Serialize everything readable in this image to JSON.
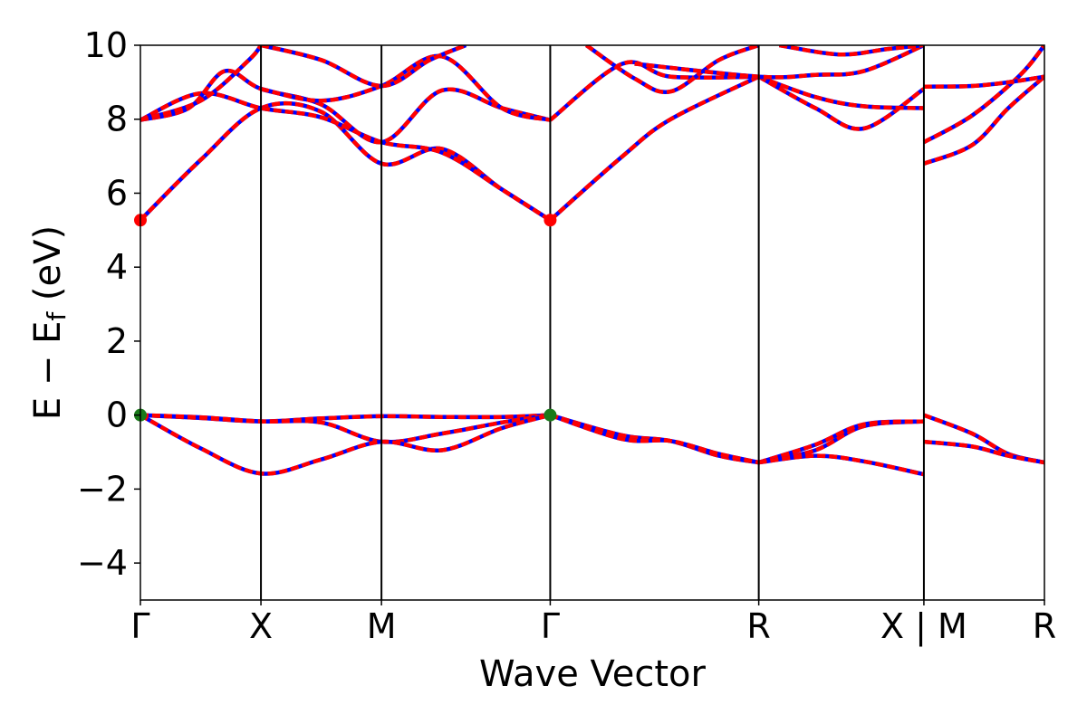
{
  "chart_data": {
    "type": "line",
    "title": "",
    "xlabel": "Wave Vector",
    "ylabel": "E − E",
    "ylabel_sub": "f",
    "ylabel_unit": " (eV)",
    "xlim": [
      0,
      7.5
    ],
    "ylim": [
      -5,
      10
    ],
    "yticks": [
      -4,
      -2,
      0,
      2,
      4,
      6,
      8,
      10
    ],
    "ytick_labels": [
      "−4",
      "−2",
      "0",
      "2",
      "4",
      "6",
      "8",
      "10"
    ],
    "grid": false,
    "legend": "none",
    "kpoints": [
      {
        "label": "Γ",
        "x": 0
      },
      {
        "label": "X",
        "x": 1
      },
      {
        "label": "M",
        "x": 2
      },
      {
        "label": "Γ",
        "x": 3.4
      },
      {
        "label": "R",
        "x": 5.13
      },
      {
        "label": "X | M",
        "x": 6.5
      },
      {
        "label": "R",
        "x": 7.5
      }
    ],
    "colors": {
      "band_primary": "#0000ff",
      "band_overlay": "#ff0000",
      "vbm_marker": "#1a7a1a",
      "cbm_marker": "#ff0000",
      "frame": "#000000"
    },
    "markers": [
      {
        "name": "VBM",
        "x": 0,
        "y": 0,
        "color": "#1a7a1a"
      },
      {
        "name": "VBM",
        "x": 3.4,
        "y": 0,
        "color": "#1a7a1a"
      },
      {
        "name": "CBM",
        "x": 0,
        "y": 5.27,
        "color": "#ff0000"
      },
      {
        "name": "CBM",
        "x": 3.4,
        "y": 5.27,
        "color": "#ff0000"
      }
    ],
    "series": [
      {
        "points": [
          [
            0,
            0
          ],
          [
            0.5,
            -0.08
          ],
          [
            1,
            -0.17
          ],
          [
            1.5,
            -0.09
          ],
          [
            2,
            -0.03
          ],
          [
            2.5,
            -0.05
          ],
          [
            3,
            -0.05
          ],
          [
            3.4,
            0
          ]
        ]
      },
      {
        "points": [
          [
            0,
            0
          ],
          [
            0.5,
            -0.06
          ],
          [
            1,
            -0.17
          ],
          [
            1.5,
            -0.2
          ],
          [
            2,
            -0.72
          ],
          [
            2.5,
            -0.5
          ],
          [
            3,
            -0.2
          ],
          [
            3.4,
            0
          ]
        ]
      },
      {
        "points": [
          [
            0,
            0
          ],
          [
            0.5,
            -0.9
          ],
          [
            1,
            -1.58
          ],
          [
            1.5,
            -1.2
          ],
          [
            2,
            -0.72
          ],
          [
            2.5,
            -0.95
          ],
          [
            3,
            -0.35
          ],
          [
            3.4,
            0
          ]
        ]
      },
      {
        "points": [
          [
            3.4,
            0
          ],
          [
            4,
            -0.55
          ],
          [
            4.4,
            -0.7
          ],
          [
            4.8,
            -1.1
          ],
          [
            5.13,
            -1.28
          ]
        ]
      },
      {
        "points": [
          [
            3.4,
            0
          ],
          [
            4,
            -0.65
          ],
          [
            4.4,
            -0.7
          ],
          [
            4.8,
            -1.05
          ],
          [
            5.13,
            -1.28
          ]
        ]
      },
      {
        "points": [
          [
            5.13,
            -1.28
          ],
          [
            5.6,
            -0.95
          ],
          [
            6,
            -0.3
          ],
          [
            6.5,
            -0.17
          ]
        ]
      },
      {
        "points": [
          [
            5.13,
            -1.28
          ],
          [
            5.6,
            -0.8
          ],
          [
            6,
            -0.25
          ],
          [
            6.5,
            -0.17
          ]
        ]
      },
      {
        "points": [
          [
            5.13,
            -1.28
          ],
          [
            5.6,
            -1.1
          ],
          [
            6,
            -1.25
          ],
          [
            6.5,
            -1.6
          ]
        ]
      },
      {
        "points": [
          [
            6.5,
            0
          ],
          [
            6.9,
            -0.5
          ],
          [
            7.2,
            -1.05
          ],
          [
            7.5,
            -1.28
          ]
        ]
      },
      {
        "points": [
          [
            6.5,
            -0.72
          ],
          [
            6.9,
            -0.85
          ],
          [
            7.2,
            -1.1
          ],
          [
            7.5,
            -1.28
          ]
        ]
      },
      {
        "points": [
          [
            0,
            5.27
          ],
          [
            0.5,
            6.9
          ],
          [
            1,
            8.3
          ],
          [
            1.5,
            8.2
          ],
          [
            2,
            6.8
          ],
          [
            2.5,
            7.2
          ],
          [
            3,
            6.1
          ],
          [
            3.4,
            5.27
          ]
        ]
      },
      {
        "points": [
          [
            0,
            7.98
          ],
          [
            0.5,
            8.7
          ],
          [
            1,
            8.3
          ],
          [
            1.5,
            8.05
          ],
          [
            2,
            7.38
          ],
          [
            2.5,
            7.1
          ],
          [
            3,
            6.1
          ],
          [
            3.4,
            5.27
          ]
        ]
      },
      {
        "points": [
          [
            0,
            7.98
          ],
          [
            0.4,
            8.3
          ],
          [
            0.7,
            9.3
          ],
          [
            1,
            8.82
          ],
          [
            1.5,
            8.4
          ],
          [
            2,
            7.38
          ],
          [
            2.5,
            8.78
          ],
          [
            3,
            8.3
          ],
          [
            3.4,
            7.98
          ]
        ]
      },
      {
        "points": [
          [
            0,
            7.98
          ],
          [
            0.5,
            8.5
          ],
          [
            0.9,
            9.6
          ],
          [
            1,
            10
          ]
        ]
      },
      {
        "points": [
          [
            1,
            8.82
          ],
          [
            1.5,
            8.5
          ],
          [
            2,
            8.9
          ],
          [
            2.5,
            9.7
          ],
          [
            3,
            8.3
          ],
          [
            3.4,
            7.98
          ]
        ]
      },
      {
        "points": [
          [
            1,
            10
          ],
          [
            1.5,
            9.6
          ],
          [
            2,
            8.9
          ],
          [
            2.4,
            9.6
          ],
          [
            2.7,
            10
          ]
        ]
      },
      {
        "points": [
          [
            3.4,
            5.27
          ],
          [
            4,
            7.0
          ],
          [
            4.4,
            8.0
          ],
          [
            5.13,
            9.15
          ]
        ]
      },
      {
        "points": [
          [
            3.4,
            7.98
          ],
          [
            4,
            9.5
          ],
          [
            4.4,
            9.15
          ],
          [
            5.13,
            9.15
          ]
        ]
      },
      {
        "points": [
          [
            3.7,
            10
          ],
          [
            4.1,
            9.1
          ],
          [
            4.4,
            8.75
          ],
          [
            4.8,
            9.6
          ],
          [
            5.13,
            10
          ]
        ]
      },
      {
        "points": [
          [
            5.13,
            9.15
          ],
          [
            5.6,
            8.3
          ],
          [
            6,
            7.75
          ],
          [
            6.5,
            8.82
          ]
        ]
      },
      {
        "points": [
          [
            5.13,
            9.15
          ],
          [
            5.6,
            8.6
          ],
          [
            6,
            8.35
          ],
          [
            6.5,
            8.3
          ]
        ]
      },
      {
        "points": [
          [
            4.1,
            9.5
          ],
          [
            5.13,
            9.15
          ],
          [
            5.6,
            9.2
          ],
          [
            6,
            9.3
          ],
          [
            6.5,
            10
          ]
        ]
      },
      {
        "points": [
          [
            5.3,
            10
          ],
          [
            5.8,
            9.75
          ],
          [
            6.2,
            9.9
          ],
          [
            6.5,
            10
          ]
        ]
      },
      {
        "points": [
          [
            6.5,
            6.8
          ],
          [
            6.9,
            7.3
          ],
          [
            7.2,
            8.3
          ],
          [
            7.5,
            9.15
          ]
        ]
      },
      {
        "points": [
          [
            6.5,
            7.38
          ],
          [
            6.9,
            8.1
          ],
          [
            7.3,
            9.2
          ],
          [
            7.5,
            10
          ]
        ]
      },
      {
        "points": [
          [
            6.5,
            8.88
          ],
          [
            6.9,
            8.9
          ],
          [
            7.2,
            9.0
          ],
          [
            7.5,
            9.15
          ]
        ]
      }
    ]
  }
}
